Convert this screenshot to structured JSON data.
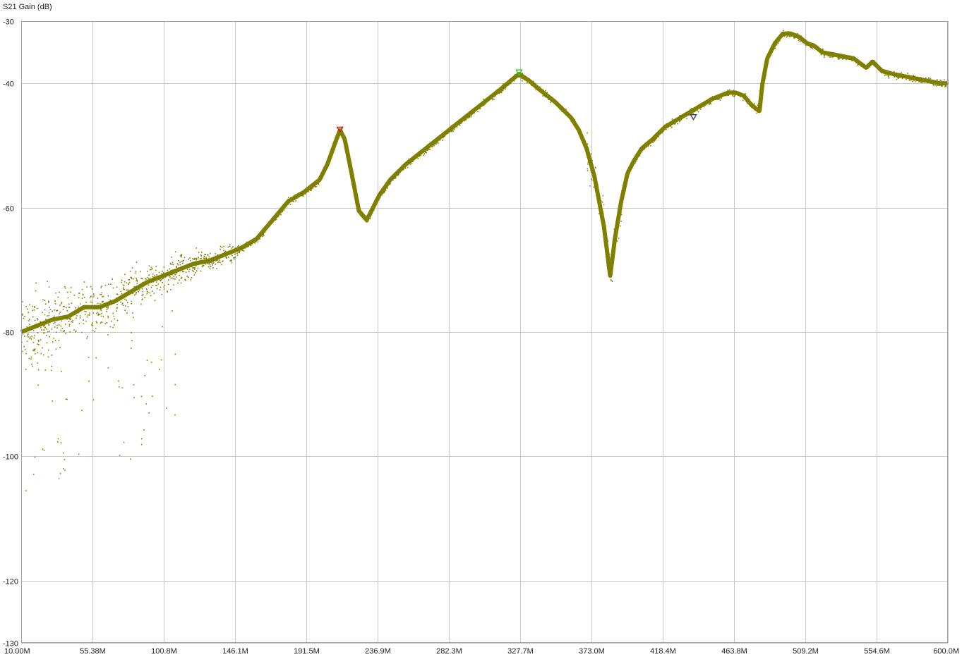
{
  "chart_data": {
    "type": "scatter",
    "title": "",
    "ylabel": "S21 Gain (dB)",
    "xlabel": "",
    "xlim": [
      10.0,
      600.0
    ],
    "ylim": [
      -130,
      -30
    ],
    "grid": true,
    "x_ticks": [
      10.0,
      55.38,
      100.8,
      146.1,
      191.5,
      236.9,
      282.3,
      327.7,
      373.0,
      418.4,
      463.8,
      509.2,
      554.6,
      600.0
    ],
    "x_tick_labels": [
      "10.00M",
      "55.38M",
      "100.8M",
      "146.1M",
      "191.5M",
      "236.9M",
      "282.3M",
      "327.7M",
      "373.0M",
      "418.4M",
      "463.8M",
      "509.2M",
      "554.6M",
      "600.0M"
    ],
    "y_ticks": [
      -30,
      -40,
      -60,
      -80,
      -100,
      -120,
      -130
    ],
    "y_tick_labels": [
      "-30",
      "-40",
      "-60",
      "-80",
      "-100",
      "-120",
      "-130"
    ],
    "series": [
      {
        "color": "#808000",
        "x": [
          10,
          20,
          30,
          40,
          50,
          60,
          70,
          80,
          90,
          100,
          110,
          120,
          130,
          140,
          150,
          160,
          170,
          180,
          190,
          200,
          205,
          210,
          213,
          216,
          220,
          225,
          230,
          234,
          238,
          245,
          255,
          265,
          275,
          285,
          295,
          305,
          315,
          322,
          327,
          333,
          340,
          350,
          360,
          365,
          370,
          375,
          378,
          381,
          383,
          385,
          388,
          392,
          396,
          400,
          405,
          412,
          420,
          430,
          440,
          450,
          460,
          465,
          470,
          475,
          480,
          482,
          485,
          490,
          495,
          500,
          505,
          510,
          515,
          520,
          530,
          540,
          548,
          552,
          558,
          565,
          575,
          585,
          595,
          600
        ],
        "y": [
          -80,
          -79,
          -78,
          -77.5,
          -76,
          -76,
          -75,
          -73.5,
          -72,
          -71,
          -70,
          -69,
          -68.5,
          -67.5,
          -66.5,
          -65,
          -62,
          -59,
          -57.5,
          -55.5,
          -53,
          -49.5,
          -47.5,
          -49,
          -54,
          -60.5,
          -62,
          -60,
          -58,
          -55.5,
          -53,
          -51,
          -49,
          -47,
          -45,
          -43,
          -41,
          -39.5,
          -38.5,
          -39.5,
          -41,
          -43,
          -45.5,
          -47.5,
          -50.5,
          -55,
          -59,
          -63,
          -67,
          -71,
          -65,
          -59,
          -54.5,
          -52.5,
          -50.5,
          -49,
          -47,
          -45.5,
          -44,
          -42.5,
          -41.5,
          -41.5,
          -42,
          -43.5,
          -44.5,
          -40,
          -36,
          -33.5,
          -32,
          -32,
          -32.5,
          -33.5,
          -34,
          -35,
          -35.5,
          -36,
          -37.5,
          -36.5,
          -38,
          -38.5,
          -39,
          -39.5,
          -40,
          -40
        ]
      }
    ],
    "markers": [
      {
        "x": 213,
        "y": -47.5,
        "color": "#cc2222"
      },
      {
        "x": 327,
        "y": -38.3,
        "color": "#22cc22"
      },
      {
        "x": 438,
        "y": -45.5,
        "color": "#404060"
      }
    ]
  }
}
